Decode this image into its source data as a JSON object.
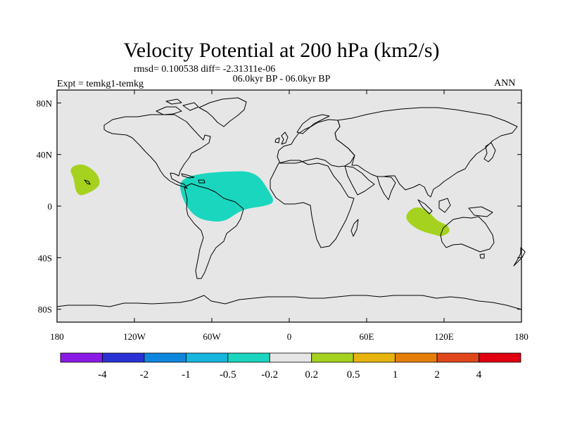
{
  "title": "Velocity Potential at 200 hPa (km2/s)",
  "stats_line": "rmsd= 0.100538 diff= -2.31311e-06",
  "period_label": "06.0kyr BP - 06.0kyr BP",
  "experiment_label": "Expt = temkg1-temkg",
  "season_label": "ANN",
  "map": {
    "projection": "cylindrical-equidistant",
    "lon_range": [
      -180,
      180
    ],
    "lat_range": [
      -90,
      90
    ],
    "background_color": "#e6e6e6",
    "x_ticks": [
      {
        "value": -180,
        "label": "180"
      },
      {
        "value": -120,
        "label": "120W"
      },
      {
        "value": -60,
        "label": "60W"
      },
      {
        "value": 0,
        "label": "0"
      },
      {
        "value": 60,
        "label": "60E"
      },
      {
        "value": 120,
        "label": "120E"
      },
      {
        "value": 180,
        "label": "180"
      }
    ],
    "y_ticks": [
      {
        "value": 80,
        "label": "80N"
      },
      {
        "value": 40,
        "label": "40N"
      },
      {
        "value": 0,
        "label": "0"
      },
      {
        "value": -40,
        "label": "40S"
      },
      {
        "value": -80,
        "label": "80S"
      }
    ],
    "anomaly_regions": [
      {
        "name": "central-north-pacific",
        "bin": "0.2 to 0.5",
        "color": "#a5d21e",
        "outline": [
          [
            -168,
            31
          ],
          [
            -160,
            33
          ],
          [
            -150,
            27
          ],
          [
            -146,
            18
          ],
          [
            -150,
            13
          ],
          [
            -158,
            9
          ],
          [
            -163,
            8
          ],
          [
            -166,
            13
          ],
          [
            -167,
            22
          ],
          [
            -170,
            27
          ]
        ]
      },
      {
        "name": "tropical-atlantic",
        "bin": "-0.5 to -0.2",
        "color": "#1bd6be",
        "outline": [
          [
            -85,
            18
          ],
          [
            -79,
            23
          ],
          [
            -62,
            26
          ],
          [
            -43,
            27
          ],
          [
            -32,
            27
          ],
          [
            -23,
            23
          ],
          [
            -16,
            12
          ],
          [
            -11,
            3
          ],
          [
            -19,
            0
          ],
          [
            -33,
            -2
          ],
          [
            -40,
            -5
          ],
          [
            -50,
            -12
          ],
          [
            -61,
            -12
          ],
          [
            -72,
            -9
          ],
          [
            -80,
            0
          ],
          [
            -84,
            10
          ]
        ]
      },
      {
        "name": "indian-ocean-australia",
        "bin": "0.2 to 0.5",
        "color": "#a5d21e",
        "outline": [
          [
            92,
            -4
          ],
          [
            99,
            0
          ],
          [
            108,
            -4
          ],
          [
            113,
            -10
          ],
          [
            118,
            -13
          ],
          [
            123,
            -15
          ],
          [
            125,
            -20
          ],
          [
            118,
            -24
          ],
          [
            112,
            -22
          ],
          [
            104,
            -20
          ],
          [
            96,
            -16
          ],
          [
            90,
            -10
          ]
        ]
      }
    ]
  },
  "colorbar": {
    "colors": [
      "#8a1be6",
      "#2a32d6",
      "#0f86dd",
      "#16b6df",
      "#1bd6be",
      "#e6e6e6",
      "#a5d21e",
      "#e6b40c",
      "#e67e0a",
      "#e0461c",
      "#e00010"
    ],
    "labels": [
      "-4",
      "-2",
      "-1",
      "-0.5",
      "-0.2",
      "0.2",
      "0.5",
      "1",
      "2",
      "4"
    ]
  }
}
